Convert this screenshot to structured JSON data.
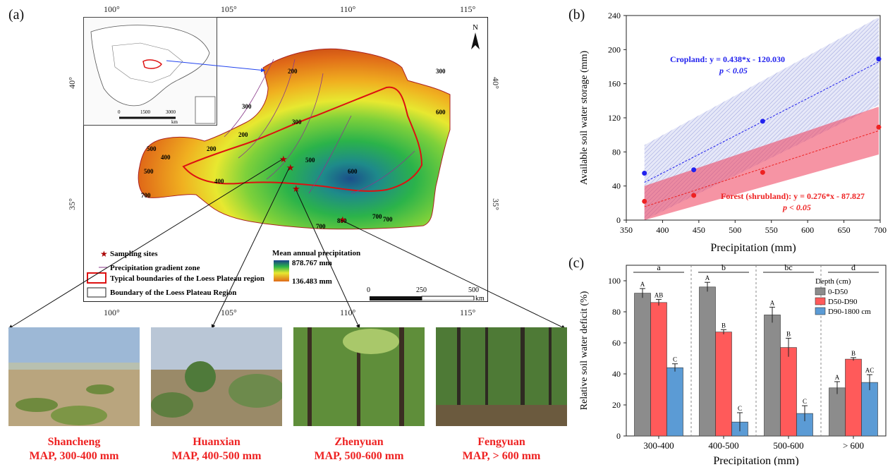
{
  "panel_a": {
    "label": "(a)",
    "top_ticks": [
      "100°",
      "105°",
      "110°",
      "115°"
    ],
    "bottom_ticks": [
      "100°",
      "105°",
      "110°",
      "115°"
    ],
    "left_ticks": [
      "40°",
      "35°"
    ],
    "right_ticks": [
      "40°",
      "35°"
    ],
    "north": "N",
    "inset_scale": [
      "0",
      "1500",
      "3000"
    ],
    "inset_unit": "km",
    "contours": [
      "200",
      "300",
      "400",
      "500",
      "600",
      "700",
      "300",
      "200",
      "400",
      "500",
      "500",
      "200",
      "300",
      "700",
      "600",
      "700",
      "800",
      "700"
    ],
    "legend": {
      "sampling_sites": "Sampling sites",
      "gradient_zone": "Precipitation gradient zone",
      "typical_boundary": "Typical boundaries of the Loess Plateau region",
      "boundary": "Boundary of the Loess Plateau Region",
      "map_title": "Mean annual precipitation",
      "map_max": "878.767 mm",
      "map_min": "136.483 mm"
    },
    "scalebar": [
      "0",
      "250",
      "500"
    ],
    "scalebar_unit": "km"
  },
  "sites": [
    {
      "name": "Shancheng",
      "map": "MAP, 300-400 mm"
    },
    {
      "name": "Huanxian",
      "map": "MAP, 400-500 mm"
    },
    {
      "name": "Zhenyuan",
      "map": "MAP, 500-600 mm"
    },
    {
      "name": "Fengyuan",
      "map": "MAP, > 600 mm"
    }
  ],
  "panel_b": {
    "label": "(b)"
  },
  "panel_c": {
    "label": "(c)"
  },
  "chart_data": [
    {
      "type": "scatter",
      "xlabel": "Precipitation (mm)",
      "ylabel": "Available soil water storage (mm)",
      "xlim": [
        350,
        700
      ],
      "ylim": [
        0,
        240
      ],
      "xticks": [
        350,
        400,
        450,
        500,
        550,
        600,
        650,
        700
      ],
      "yticks": [
        0,
        40,
        80,
        120,
        160,
        200,
        240
      ],
      "series": [
        {
          "name": "Cropland",
          "color": "#2222ee",
          "x": [
            375,
            443,
            538,
            698
          ],
          "y": [
            55,
            59,
            116,
            189
          ],
          "equation": "Cropland: y = 0.438*x - 120.030",
          "p": "p < 0.05",
          "band": {
            "xl": 375,
            "lower_l": 0,
            "upper_l": 88,
            "xr": 698,
            "lower_r": 135,
            "upper_r": 238
          }
        },
        {
          "name": "Forest (shrubland)",
          "color": "#ee2222",
          "x": [
            375,
            443,
            538,
            698
          ],
          "y": [
            22,
            29,
            56,
            109
          ],
          "equation": "Forest (shrubland): y = 0.276*x - 87.827",
          "p": "p < 0.05",
          "band": {
            "xl": 375,
            "lower_l": 0,
            "upper_l": 40,
            "xr": 698,
            "lower_r": 77,
            "upper_r": 133
          }
        }
      ]
    },
    {
      "type": "bar",
      "xlabel": "Precipitation (mm)",
      "ylabel": "Relative soil water deficit (%)",
      "ylim": [
        0,
        110
      ],
      "yticks": [
        0,
        20,
        40,
        60,
        80,
        100
      ],
      "categories": [
        "300-400",
        "400-500",
        "500-600",
        "> 600"
      ],
      "group_letters": [
        "a",
        "b",
        "bc",
        "d"
      ],
      "legend_title": "Depth (cm)",
      "series": [
        {
          "name": "0-D50",
          "color": "#8c8c8c",
          "values": [
            92,
            96,
            78,
            31
          ],
          "errors": [
            3,
            3,
            5,
            4
          ],
          "letters": [
            "A",
            "A",
            "A",
            "A"
          ]
        },
        {
          "name": "D50-D90",
          "color": "#ff5a5a",
          "values": [
            86,
            67,
            57,
            49.5
          ],
          "errors": [
            2,
            1.5,
            6,
            1
          ],
          "letters": [
            "AB",
            "B",
            "B",
            "B"
          ]
        },
        {
          "name": "D90-1800 cm",
          "color": "#5b9bd5",
          "values": [
            44,
            9,
            14.5,
            34.5
          ],
          "errors": [
            2.5,
            6,
            5,
            5
          ],
          "letters": [
            "C",
            "C",
            "C",
            "AC"
          ]
        }
      ]
    }
  ]
}
